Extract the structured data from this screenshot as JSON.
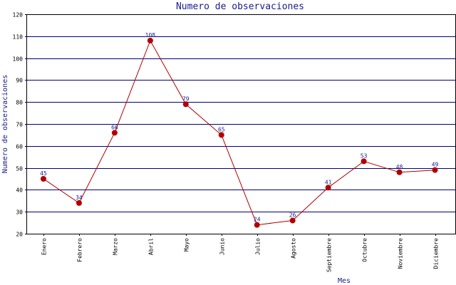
{
  "chart_data": {
    "type": "line",
    "title": "Numero de observaciones",
    "xlabel": "Mes",
    "ylabel": "Numero de observaciones",
    "categories": [
      "Enero",
      "Febrero",
      "Marzo",
      "Abril",
      "Mayo",
      "Junio",
      "Julio",
      "Agosto",
      "Septiembre",
      "Octubre",
      "Noviembre",
      "Diciembre"
    ],
    "series": [
      {
        "values": [
          45,
          34,
          66,
          108,
          79,
          65,
          24,
          26,
          41,
          53,
          48,
          49
        ]
      }
    ],
    "ylim": [
      20,
      120
    ],
    "yticks": [
      20,
      30,
      40,
      50,
      60,
      70,
      80,
      90,
      100,
      110,
      120
    ],
    "grid": true,
    "colors": {
      "line": "#b20000",
      "marker": "#b20000",
      "grid": "#00007a",
      "label": "#1a1a8c"
    }
  }
}
